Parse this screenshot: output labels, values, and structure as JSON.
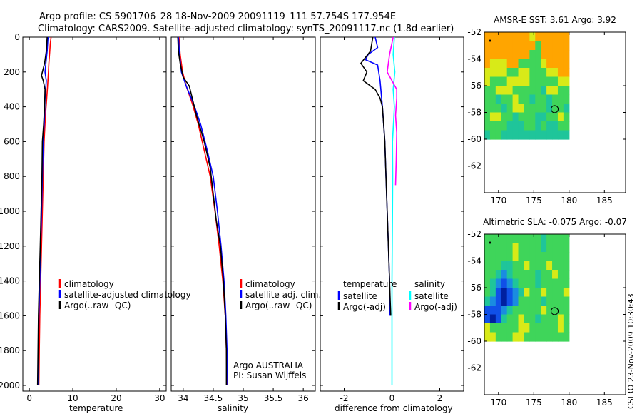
{
  "titles": {
    "line1": "Argo profile: CS 5901706_28 18-Nov-2009 20091119_111 57.754S 177.954E",
    "line2": "Climatology: CARS2009. Satellite-adjusted climatology: synTS_20091117.nc (1.8d earlier)"
  },
  "footer_label": "CSIRO 23-Nov-2009 10:30:43",
  "chart_data": [
    {
      "type": "line",
      "id": "temperature-profile",
      "xlabel": "temperature",
      "ylabel": "",
      "xlim": [
        -1.5,
        31.5
      ],
      "ylim": [
        2000,
        0
      ],
      "xticks": [
        0,
        10,
        20,
        30
      ],
      "yticks": [
        0,
        200,
        400,
        600,
        800,
        1000,
        1200,
        1400,
        1600,
        1800,
        2000
      ],
      "legend": [
        "climatology",
        "satellite-adjusted climatology",
        "Argo(..raw -QC)"
      ],
      "legend_position": "bottom-right",
      "series": [
        {
          "name": "climatology",
          "color": "#ff0000",
          "points": [
            [
              5.0,
              0
            ],
            [
              4.8,
              40
            ],
            [
              4.7,
              80
            ],
            [
              4.5,
              150
            ],
            [
              4.4,
              200
            ],
            [
              4.2,
              280
            ],
            [
              4.0,
              350
            ],
            [
              3.7,
              450
            ],
            [
              3.4,
              600
            ],
            [
              3.2,
              800
            ],
            [
              3.0,
              1000
            ],
            [
              2.8,
              1200
            ],
            [
              2.6,
              1400
            ],
            [
              2.4,
              1600
            ],
            [
              2.3,
              1800
            ],
            [
              2.2,
              2000
            ]
          ]
        },
        {
          "name": "satellite-adjusted climatology",
          "color": "#0000ff",
          "points": [
            [
              4.3,
              0
            ],
            [
              4.2,
              40
            ],
            [
              4.1,
              80
            ],
            [
              3.8,
              150
            ],
            [
              3.6,
              200
            ],
            [
              3.9,
              250
            ],
            [
              3.6,
              350
            ],
            [
              3.5,
              450
            ],
            [
              3.2,
              600
            ],
            [
              3.0,
              800
            ],
            [
              2.8,
              1000
            ],
            [
              2.6,
              1200
            ],
            [
              2.4,
              1400
            ],
            [
              2.2,
              1600
            ],
            [
              2.1,
              1800
            ],
            [
              2.0,
              2000
            ]
          ]
        },
        {
          "name": "Argo(..raw -QC)",
          "color": "#000000",
          "points": [
            [
              4.1,
              0
            ],
            [
              4.0,
              40
            ],
            [
              3.9,
              80
            ],
            [
              3.5,
              150
            ],
            [
              3.1,
              190
            ],
            [
              2.8,
              220
            ],
            [
              3.2,
              250
            ],
            [
              3.6,
              300
            ],
            [
              3.5,
              400
            ],
            [
              3.3,
              500
            ],
            [
              3.0,
              600
            ],
            [
              2.9,
              800
            ],
            [
              2.7,
              1000
            ],
            [
              2.5,
              1200
            ],
            [
              2.3,
              1400
            ],
            [
              2.1,
              1600
            ],
            [
              2.0,
              1800
            ],
            [
              1.9,
              2000
            ]
          ]
        }
      ]
    },
    {
      "type": "line",
      "id": "salinity-profile",
      "xlabel": "salinity",
      "ylabel": "",
      "xlim": [
        33.8,
        36.2
      ],
      "ylim": [
        2000,
        0
      ],
      "xticks": [
        34,
        34.5,
        35,
        35.5,
        36
      ],
      "legend": [
        "climatology",
        "satellite adj. clim.",
        "Argo(..raw -QC)"
      ],
      "legend_position": "bottom-right",
      "annotations": [
        "Argo AUSTRALIA",
        "PI: Susan Wijffels"
      ],
      "series": [
        {
          "name": "climatology",
          "color": "#ff0000",
          "points": [
            [
              33.93,
              0
            ],
            [
              33.95,
              100
            ],
            [
              33.99,
              200
            ],
            [
              34.05,
              280
            ],
            [
              34.15,
              380
            ],
            [
              34.25,
              500
            ],
            [
              34.35,
              650
            ],
            [
              34.45,
              800
            ],
            [
              34.53,
              1000
            ],
            [
              34.6,
              1200
            ],
            [
              34.66,
              1400
            ],
            [
              34.7,
              1600
            ],
            [
              34.72,
              1800
            ],
            [
              34.73,
              2000
            ]
          ]
        },
        {
          "name": "satellite adj. clim.",
          "color": "#0000ff",
          "points": [
            [
              33.92,
              0
            ],
            [
              33.94,
              100
            ],
            [
              33.97,
              200
            ],
            [
              34.05,
              280
            ],
            [
              34.17,
              380
            ],
            [
              34.29,
              500
            ],
            [
              34.4,
              650
            ],
            [
              34.5,
              800
            ],
            [
              34.57,
              1000
            ],
            [
              34.63,
              1200
            ],
            [
              34.68,
              1400
            ],
            [
              34.71,
              1600
            ],
            [
              34.73,
              1800
            ],
            [
              34.74,
              2000
            ]
          ]
        },
        {
          "name": "Argo(..raw -QC)",
          "color": "#000000",
          "points": [
            [
              33.91,
              0
            ],
            [
              33.92,
              80
            ],
            [
              33.95,
              150
            ],
            [
              34.0,
              230
            ],
            [
              34.1,
              280
            ],
            [
              34.15,
              350
            ],
            [
              34.22,
              450
            ],
            [
              34.35,
              600
            ],
            [
              34.45,
              750
            ],
            [
              34.5,
              900
            ],
            [
              34.55,
              1050
            ],
            [
              34.62,
              1200
            ],
            [
              34.67,
              1400
            ],
            [
              34.7,
              1600
            ],
            [
              34.72,
              1800
            ],
            [
              34.72,
              2000
            ]
          ]
        }
      ]
    },
    {
      "type": "line",
      "id": "difference-profile",
      "xlabel": "difference from climatology",
      "ylabel": "",
      "xlim": [
        -3,
        3
      ],
      "ylim": [
        2000,
        0
      ],
      "xticks": [
        -2,
        0,
        2
      ],
      "legend_groups": [
        {
          "title": "temperature",
          "items": [
            "satellite",
            "Argo(-adj)"
          ]
        },
        {
          "title": "salinity",
          "items": [
            "satellite",
            "Argo(-adj)"
          ]
        }
      ],
      "legend_position": "bottom",
      "series": [
        {
          "name": "temperature satellite",
          "color": "#0000ff",
          "points": [
            [
              -0.7,
              0
            ],
            [
              -0.6,
              60
            ],
            [
              -1.0,
              100
            ],
            [
              -1.1,
              130
            ],
            [
              -0.6,
              160
            ],
            [
              -0.5,
              250
            ],
            [
              -0.4,
              400
            ],
            [
              -0.35,
              500
            ],
            [
              -0.3,
              600
            ],
            [
              -0.25,
              800
            ],
            [
              -0.2,
              1000
            ],
            [
              -0.15,
              1200
            ],
            [
              -0.1,
              1400
            ],
            [
              -0.08,
              1600
            ]
          ]
        },
        {
          "name": "temperature Argo(-adj)",
          "color": "#000000",
          "points": [
            [
              -0.8,
              0
            ],
            [
              -0.9,
              80
            ],
            [
              -1.3,
              150
            ],
            [
              -1.05,
              200
            ],
            [
              -1.2,
              250
            ],
            [
              -0.7,
              300
            ],
            [
              -0.5,
              350
            ],
            [
              -0.4,
              400
            ],
            [
              -0.35,
              500
            ],
            [
              -0.3,
              600
            ],
            [
              -0.25,
              800
            ],
            [
              -0.2,
              1000
            ],
            [
              -0.15,
              1200
            ],
            [
              -0.1,
              1400
            ],
            [
              -0.05,
              1600
            ]
          ]
        },
        {
          "name": "salinity satellite",
          "color": "#00ffff",
          "points": [
            [
              0.1,
              0
            ],
            [
              0.05,
              100
            ],
            [
              0.12,
              200
            ],
            [
              0.05,
              300
            ],
            [
              0.1,
              400
            ],
            [
              0.02,
              600
            ],
            [
              0.03,
              800
            ],
            [
              0.02,
              1000
            ],
            [
              0.0,
              1400
            ],
            [
              0.0,
              1800
            ],
            [
              0.0,
              2000
            ]
          ]
        },
        {
          "name": "salinity Argo(-adj)",
          "color": "#ff00ff",
          "points": [
            [
              0.05,
              0
            ],
            [
              -0.1,
              100
            ],
            [
              -0.2,
              200
            ],
            [
              0.0,
              250
            ],
            [
              0.2,
              300
            ],
            [
              0.2,
              350
            ],
            [
              0.15,
              450
            ],
            [
              0.2,
              550
            ],
            [
              0.18,
              700
            ],
            [
              0.15,
              850
            ]
          ]
        }
      ]
    }
  ],
  "maps": [
    {
      "id": "sst-map",
      "title": "AMSR-E SST: 3.61  Argo: 3.92",
      "lon_range": [
        168,
        188
      ],
      "lat_range": [
        -64,
        -52
      ],
      "xticks": [
        170,
        175,
        180,
        185
      ],
      "yticks": [
        -52,
        -54,
        -56,
        -58,
        -60,
        -62
      ],
      "data_lon_max": 180,
      "data_lat_min": -60,
      "float_position": {
        "lon": 177.954,
        "lat": -57.754
      },
      "rows": [
        "OOOOOOOOYOOOOOO",
        "OOOOOOOOOGOOOOO",
        "OOOOOOOOGGOOOOO",
        "OYYYOOGGGGYOOOO",
        "YYYYGGYYGGGYYOO",
        "YGGGYYYYGGGGGYY",
        "GGYYYGGGGGTYYGG",
        "GGTGGYGGTGGTGGG",
        "GGGTGYYGGGGTGGT",
        "GYYGGTGGGTTGGYG",
        "GGGGTTTGGTGTTGG",
        "TGGTTTTTTTTTTTT"
      ]
    },
    {
      "id": "sla-map",
      "title": "Altimetric SLA: -0.075  Argo: -0.07",
      "lon_range": [
        168,
        188
      ],
      "lat_range": [
        -64,
        -52
      ],
      "xticks": [
        170,
        175,
        180,
        185
      ],
      "yticks": [
        -52,
        -54,
        -56,
        -58,
        -60,
        -62
      ],
      "data_lon_max": 180,
      "data_lat_min": -60,
      "float_position": {
        "lon": 177.954,
        "lat": -57.754
      },
      "rows": [
        "GGGGGGGGGGTGGGG",
        "GGGGGYGGGGTGGGG",
        "GGGGGYGGGGGGGGG",
        "GGGTTGGYGGGYGGG",
        "GGTCTGGGGTGGYGG",
        "GTCBCTGGGTGGGGG",
        "GTBDBCTYGGYGGGY",
        "TCBDBCGGGGTGGGG",
        "BBBCTGGGGGYGGGG",
        "BDBTGGYGGTGGGYG",
        "YGGGGGYYGGGGGYG",
        "YYGGGYYGGGGGGGG"
      ]
    }
  ],
  "map_palette": {
    "O": "#ffa500",
    "Y": "#d8ea18",
    "G": "#3fd55a",
    "T": "#1fc59a",
    "C": "#1a8ce0",
    "B": "#1050e8",
    "D": "#0020a0"
  }
}
